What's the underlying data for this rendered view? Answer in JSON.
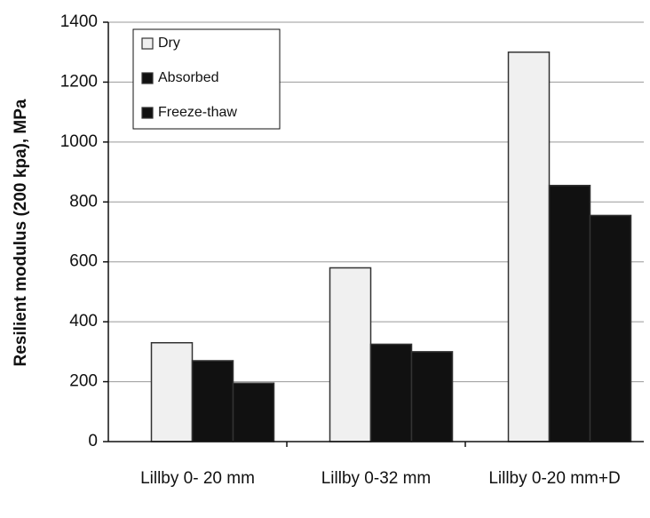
{
  "chart_data": {
    "type": "bar",
    "y_label": "Resilient modulus (200 kpa), MPa",
    "categories": [
      "Lillby 0- 20 mm",
      "Lillby 0-32 mm",
      "Lillby 0-20 mm+D"
    ],
    "series": [
      {
        "name": "Dry",
        "color": "#f0f0f0",
        "values": [
          330,
          580,
          1300
        ]
      },
      {
        "name": "Absorbed",
        "color": "#111111",
        "values": [
          270,
          325,
          855
        ]
      },
      {
        "name": "Freeze-thaw",
        "color": "#111111",
        "values": [
          195,
          300,
          755
        ]
      }
    ],
    "ylim": [
      0,
      1400
    ],
    "yticks": [
      0,
      200,
      400,
      600,
      800,
      1000,
      1200,
      1400
    ],
    "grid": true,
    "legend": "top-left"
  }
}
